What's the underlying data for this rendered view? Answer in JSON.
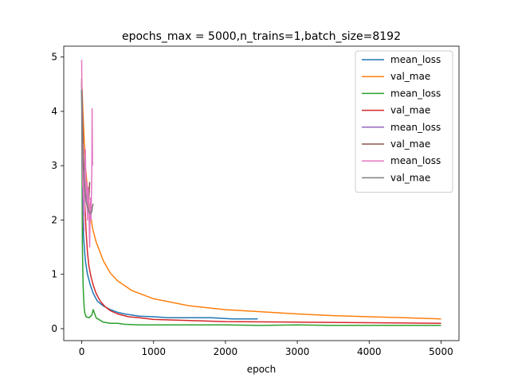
{
  "chart_data": {
    "type": "line",
    "title": "epochs_max = 5000,n_trains=1,batch_size=8192",
    "xlabel": "epoch",
    "ylabel": "",
    "xlim": [
      -250,
      5250
    ],
    "ylim": [
      -0.22,
      5.2
    ],
    "xticks": [
      0,
      1000,
      2000,
      3000,
      4000,
      5000
    ],
    "yticks": [
      0,
      1,
      2,
      3,
      4,
      5
    ],
    "grid": false,
    "legend_position": "top-right",
    "series": [
      {
        "name": "mean_loss",
        "color": "#1f77b4",
        "x": [
          0,
          10,
          25,
          50,
          80,
          120,
          160,
          220,
          300,
          400,
          500,
          600,
          800,
          1000,
          1200,
          1500,
          1800,
          2100,
          2400,
          2450
        ],
        "y": [
          4.55,
          3.0,
          1.7,
          1.25,
          1.0,
          0.8,
          0.65,
          0.5,
          0.42,
          0.35,
          0.3,
          0.27,
          0.23,
          0.22,
          0.2,
          0.2,
          0.2,
          0.18,
          0.18,
          0.18
        ]
      },
      {
        "name": "val_mae",
        "color": "#ff7f0e",
        "x": [
          0,
          20,
          50,
          100,
          150,
          200,
          300,
          400,
          500,
          700,
          1000,
          1500,
          2000,
          2500,
          3000,
          3500,
          4000,
          4500,
          5000
        ],
        "y": [
          4.6,
          3.9,
          3.0,
          2.3,
          1.85,
          1.6,
          1.25,
          1.02,
          0.88,
          0.7,
          0.55,
          0.42,
          0.35,
          0.31,
          0.27,
          0.24,
          0.22,
          0.2,
          0.18
        ]
      },
      {
        "name": "mean_loss",
        "color": "#2ca02c",
        "x": [
          0,
          10,
          20,
          30,
          40,
          60,
          100,
          140,
          160,
          200,
          300,
          400,
          500,
          600,
          800,
          1000,
          1500,
          2000,
          2500,
          3000,
          3500,
          4000,
          4500,
          5000
        ],
        "y": [
          4.4,
          1.5,
          0.8,
          0.45,
          0.3,
          0.22,
          0.2,
          0.25,
          0.35,
          0.2,
          0.12,
          0.1,
          0.1,
          0.08,
          0.07,
          0.07,
          0.07,
          0.07,
          0.06,
          0.07,
          0.06,
          0.06,
          0.06,
          0.06
        ]
      },
      {
        "name": "val_mae",
        "color": "#d62728",
        "x": [
          0,
          20,
          40,
          60,
          80,
          100,
          130,
          160,
          200,
          260,
          330,
          400,
          500,
          650,
          800,
          1000,
          1500,
          2000,
          3000,
          4000,
          5000
        ],
        "y": [
          4.5,
          3.4,
          2.4,
          1.8,
          1.4,
          1.15,
          0.95,
          0.8,
          0.65,
          0.5,
          0.4,
          0.33,
          0.27,
          0.22,
          0.2,
          0.17,
          0.15,
          0.13,
          0.12,
          0.11,
          0.1
        ]
      },
      {
        "name": "mean_loss",
        "color": "#9467bd",
        "x": [
          0,
          10,
          20,
          30
        ],
        "y": [
          4.4,
          3.0,
          2.2,
          1.8
        ]
      },
      {
        "name": "val_mae",
        "color": "#8c564b",
        "x": [
          0,
          10,
          20,
          40,
          60,
          80,
          100,
          110
        ],
        "y": [
          4.6,
          4.0,
          3.3,
          2.7,
          2.4,
          2.2,
          2.4,
          2.7
        ]
      },
      {
        "name": "mean_loss",
        "color": "#e377c2",
        "x": [
          0,
          5,
          10,
          15,
          20,
          25,
          30,
          40,
          50,
          60,
          70,
          80,
          90,
          100,
          110,
          120,
          130,
          140,
          145,
          150
        ],
        "y": [
          4.95,
          4.0,
          3.6,
          2.6,
          3.4,
          2.4,
          2.9,
          2.1,
          3.3,
          2.5,
          2.7,
          2.0,
          2.6,
          2.2,
          1.5,
          2.4,
          2.0,
          2.9,
          4.05,
          3.0
        ]
      },
      {
        "name": "val_mae",
        "color": "#7f7f7f",
        "x": [
          0,
          10,
          20,
          40,
          60,
          80,
          100,
          120,
          140,
          150,
          160
        ],
        "y": [
          4.4,
          3.6,
          3.0,
          2.6,
          2.35,
          2.25,
          2.15,
          2.12,
          2.15,
          2.25,
          2.3
        ]
      }
    ]
  }
}
